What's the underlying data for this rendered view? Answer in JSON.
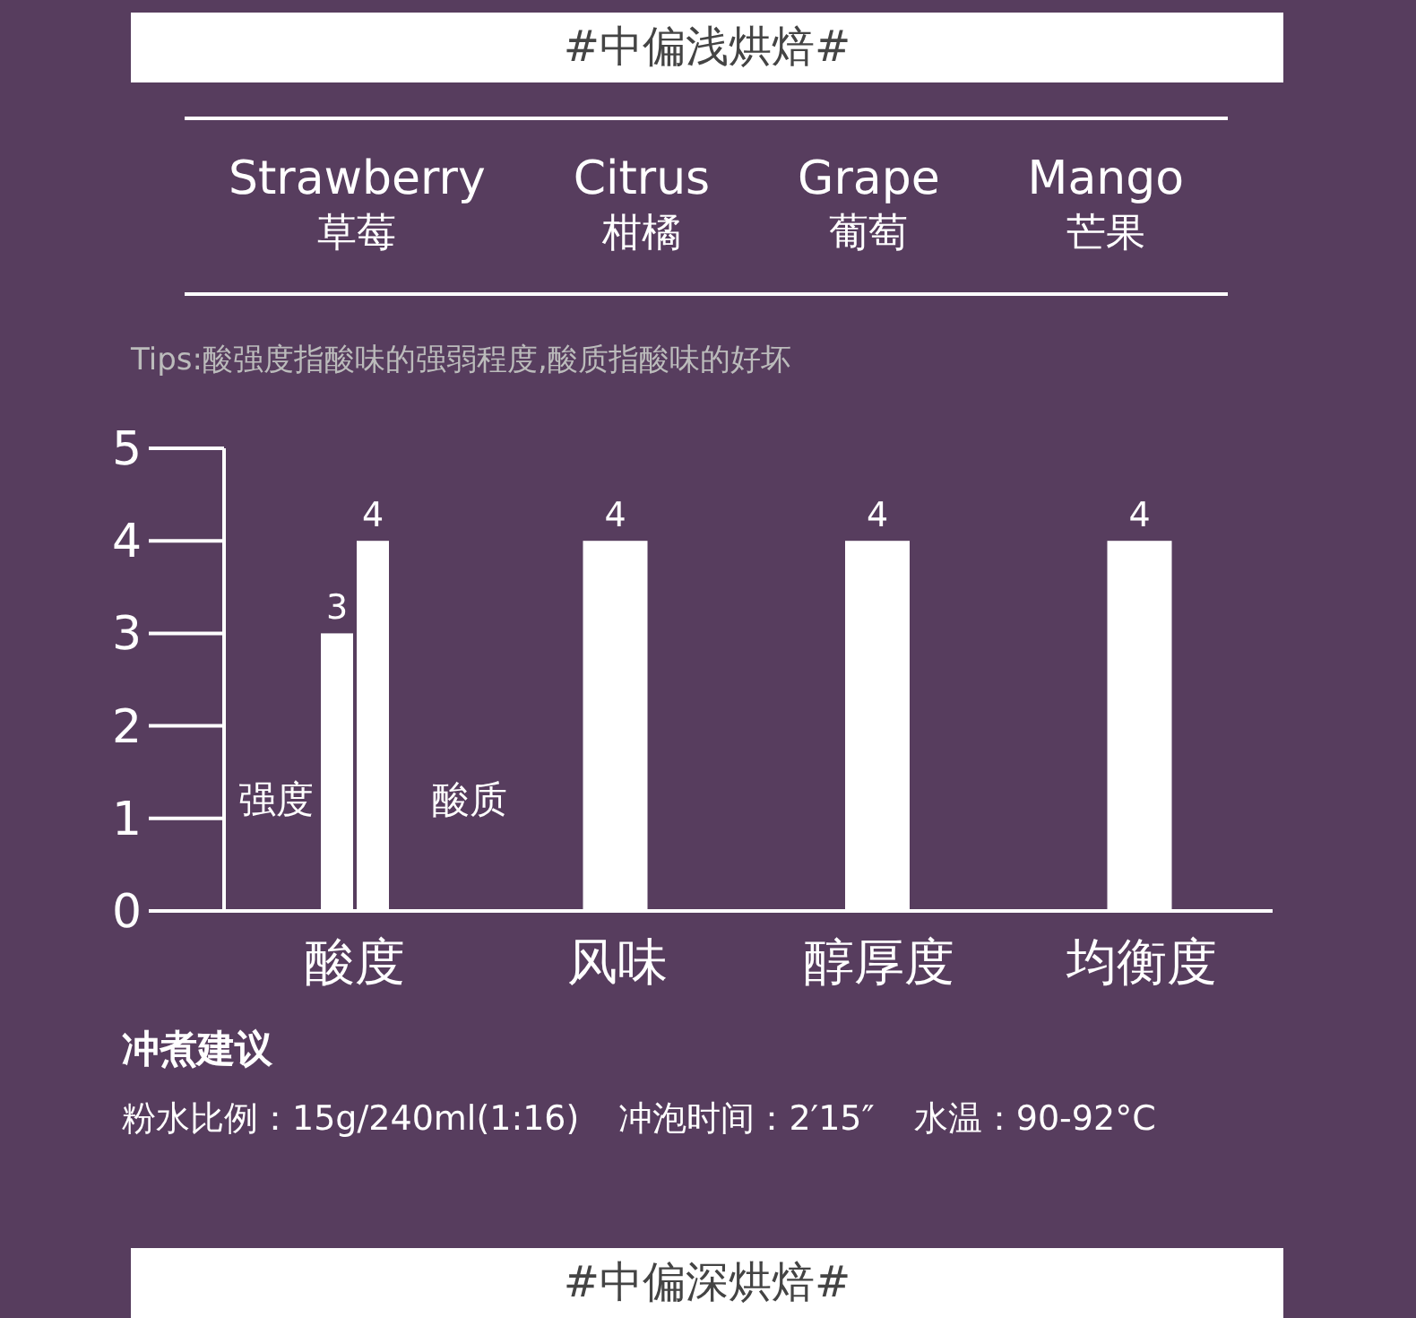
{
  "chart_data": {
    "type": "bar",
    "title": "#中偏浅烘焙#",
    "categories": [
      "酸度",
      "风味",
      "醇厚度",
      "均衡度"
    ],
    "series": [
      {
        "name": "强度",
        "color": "#ffffff",
        "values": [
          3,
          null,
          null,
          null
        ]
      },
      {
        "name": "酸质",
        "color": "#ffffff",
        "values": [
          4,
          4,
          4,
          4
        ]
      }
    ],
    "ylim": [
      0,
      5
    ],
    "yticks": [
      0,
      1,
      2,
      3,
      4,
      5
    ],
    "grid": false,
    "data_labels": true,
    "annotations": [
      "Strawberry",
      "草莓",
      "Citrus",
      "柑橘",
      "Grape",
      "葡萄",
      "Mango",
      "芒果",
      "Tips:酸强度指酸味的强弱程度,酸质指酸味的好坏",
      "冲煮建议",
      "粉水比例：15g/240ml(1:16)",
      "冲泡时间：2′15″",
      "水温：90-92°C",
      "#中偏深烘焙#"
    ]
  }
}
